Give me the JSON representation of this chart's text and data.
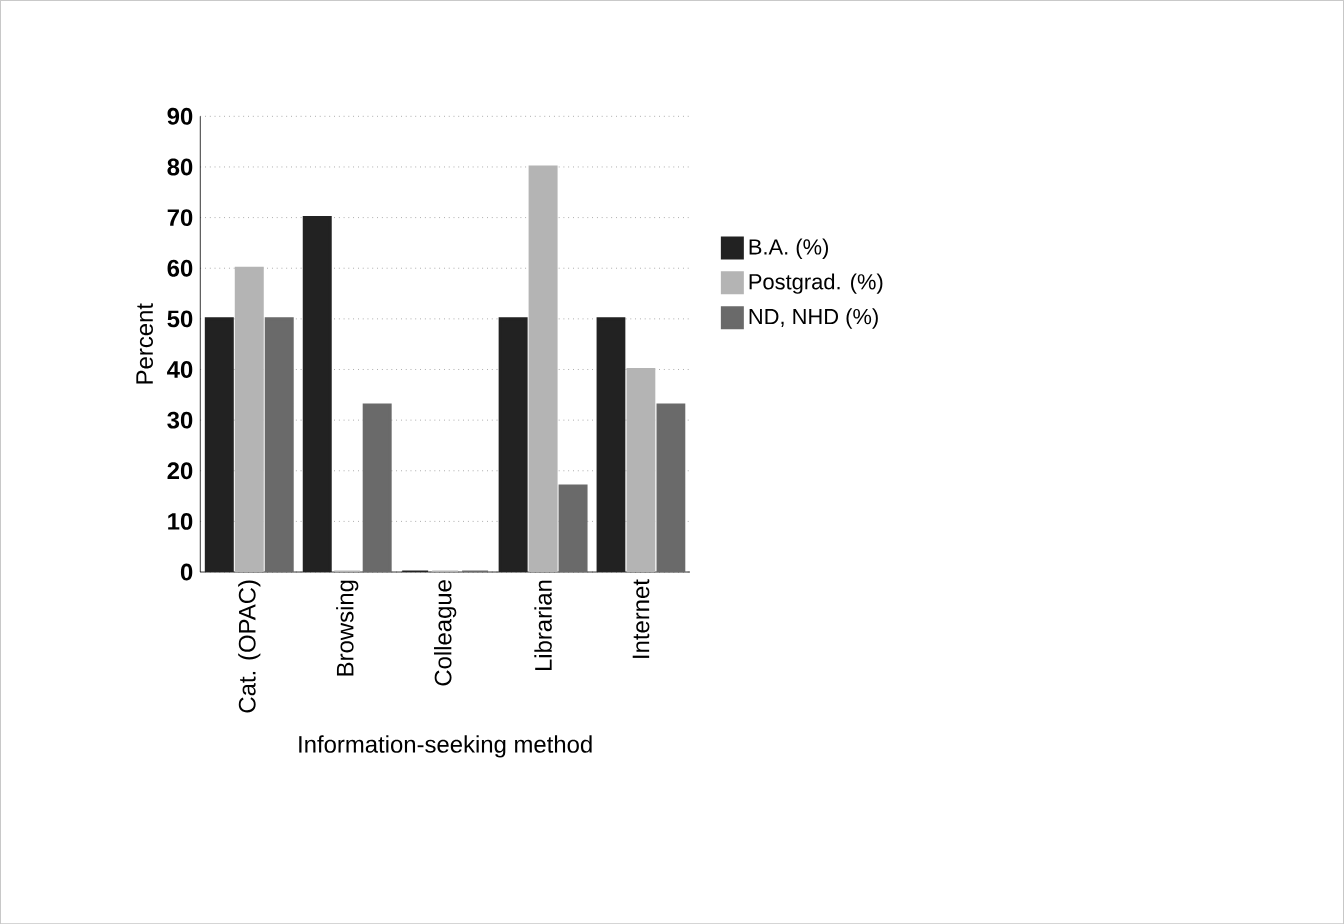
{
  "chart_data": {
    "type": "bar",
    "xlabel": "Information-seeking method",
    "ylabel": "Percent",
    "categories": [
      "Cat. (OPAC)",
      "Browsing",
      "Colleague",
      "Librarian",
      "Internet"
    ],
    "series": [
      {
        "name": "B.A. (%)",
        "color": "#222222",
        "values": [
          50,
          70,
          0,
          50,
          50
        ]
      },
      {
        "name": "Postgrad. (%)",
        "color": "#b4b4b4",
        "values": [
          60,
          0,
          0,
          80,
          40
        ]
      },
      {
        "name": "ND, NHD (%)",
        "color": "#6a6a6a",
        "values": [
          50,
          33,
          0,
          17,
          33
        ]
      }
    ],
    "ylim": [
      0,
      90
    ],
    "yticks": [
      0,
      10,
      20,
      30,
      40,
      50,
      60,
      70,
      80,
      90
    ],
    "grid": "y",
    "legend": "right"
  }
}
